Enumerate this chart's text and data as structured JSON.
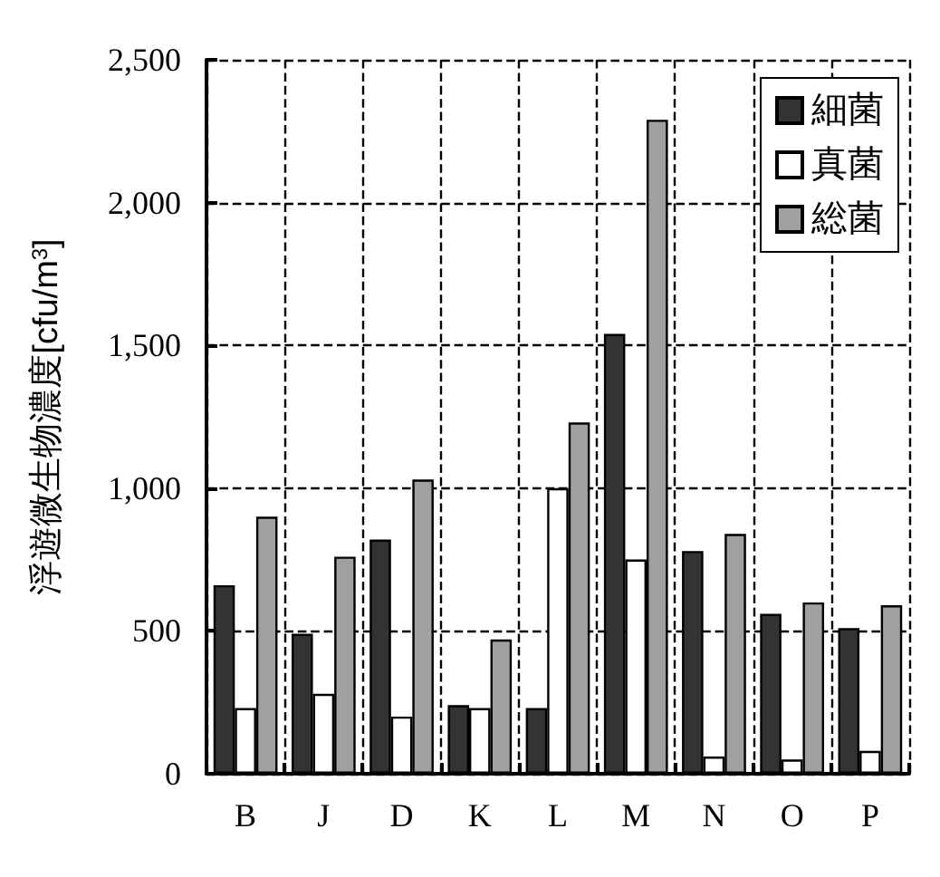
{
  "chart_data": {
    "type": "bar",
    "ylabel": "浮遊微生物濃度[cfu/m$^{3}$]",
    "categories": [
      "B",
      "J",
      "D",
      "K",
      "L",
      "M",
      "N",
      "O",
      "P"
    ],
    "series": [
      {
        "name": "細菌",
        "color": "#333333",
        "values": [
          660,
          490,
          820,
          240,
          230,
          1540,
          780,
          560,
          510
        ]
      },
      {
        "name": "真菌",
        "color": "#ffffff",
        "values": [
          230,
          280,
          200,
          230,
          1000,
          750,
          60,
          50,
          80
        ]
      },
      {
        "name": "総菌",
        "color": "#a0a0a0",
        "values": [
          900,
          760,
          1030,
          470,
          1230,
          2290,
          840,
          600,
          590
        ]
      }
    ],
    "ylim": [
      0,
      2500
    ],
    "yticks": [
      0,
      500,
      {
        "value": 1000,
        "label": "1,000"
      },
      {
        "value": 1500,
        "label": "1,500"
      },
      {
        "value": 2000,
        "label": "2,000"
      },
      {
        "value": 2500,
        "label": "2,500"
      }
    ],
    "grid": true,
    "legend": "top right"
  }
}
